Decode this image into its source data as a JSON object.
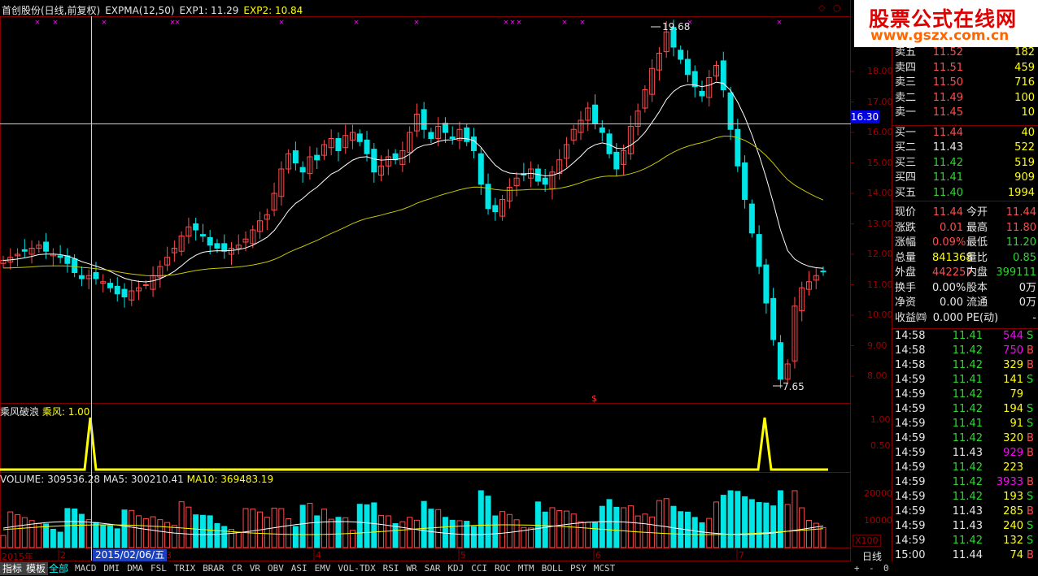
{
  "header": {
    "stock_name": "首创股份(日线,前复权)",
    "indicator": "EXPMA(12,50)",
    "exp1_label": "EXP1: 11.29",
    "exp2_label": "EXP2: 10.84"
  },
  "sub_header": {
    "name": "乘风破浪",
    "value_label": "乘风: 1.00"
  },
  "volume_header": {
    "volume": "VOLUME: 309536.28",
    "ma5": "MA5: 300210.41",
    "ma10": "MA10: 369483.19"
  },
  "logo": {
    "title": "股票公式在线网",
    "url": "www.gszx.com.cn"
  },
  "price_axis": [
    "18.00",
    "17.00",
    "16.00",
    "15.00",
    "14.00",
    "13.00",
    "12.00",
    "11.00",
    "10.00",
    "9.00",
    "8.00"
  ],
  "sub_axis": [
    "1.00",
    "0.50"
  ],
  "vol_axis": [
    "20000",
    "10000"
  ],
  "cursor_price": "16.30",
  "max_label": "19.68",
  "min_label": "7.65",
  "x100": "X100",
  "daily": "日线",
  "date_box": "2015/02/06/五",
  "year_label": "2015年",
  "month_labels": [
    "2",
    "3",
    "4",
    "5",
    "6",
    "7"
  ],
  "dollar_mark": "$",
  "order_book": {
    "sell": [
      {
        "label": "卖五",
        "price": "11.52",
        "vol": "182"
      },
      {
        "label": "卖四",
        "price": "11.51",
        "vol": "459"
      },
      {
        "label": "卖三",
        "price": "11.50",
        "vol": "716"
      },
      {
        "label": "卖二",
        "price": "11.49",
        "vol": "100"
      },
      {
        "label": "卖一",
        "price": "11.45",
        "vol": "10"
      }
    ],
    "buy": [
      {
        "label": "买一",
        "price": "11.44",
        "vol": "40"
      },
      {
        "label": "买二",
        "price": "11.43",
        "vol": "522"
      },
      {
        "label": "买三",
        "price": "11.42",
        "vol": "519"
      },
      {
        "label": "买四",
        "price": "11.41",
        "vol": "909"
      },
      {
        "label": "买五",
        "price": "11.40",
        "vol": "1994"
      }
    ]
  },
  "quote": [
    {
      "l1": "现价",
      "v1": "11.44",
      "l2": "今开",
      "v2": "11.44"
    },
    {
      "l1": "涨跌",
      "v1": "0.01",
      "l2": "最高",
      "v2": "11.80"
    },
    {
      "l1": "涨幅",
      "v1": "0.09%",
      "l2": "最低",
      "v2": "11.20"
    },
    {
      "l1": "总量",
      "v1": "841368",
      "l2": "量比",
      "v2": "0.85"
    },
    {
      "l1": "外盘",
      "v1": "442257",
      "l2": "内盘",
      "v2": "399111"
    },
    {
      "l1": "换手",
      "v1": "0.00%",
      "l2": "股本",
      "v2": "0万"
    },
    {
      "l1": "净资",
      "v1": "0.00",
      "l2": "流通",
      "v2": "0万"
    },
    {
      "l1": "收益㈣",
      "v1": "0.000",
      "l2": "PE(动)",
      "v2": "-"
    }
  ],
  "ticks": [
    {
      "t": "14:58",
      "p": "11.41",
      "v": "544",
      "f": "S"
    },
    {
      "t": "14:58",
      "p": "11.42",
      "v": "750",
      "f": "B"
    },
    {
      "t": "14:58",
      "p": "11.42",
      "v": "329",
      "f": "B"
    },
    {
      "t": "14:59",
      "p": "11.41",
      "v": "141",
      "f": "S"
    },
    {
      "t": "14:59",
      "p": "11.42",
      "v": "79",
      "f": ""
    },
    {
      "t": "14:59",
      "p": "11.42",
      "v": "194",
      "f": "S"
    },
    {
      "t": "14:59",
      "p": "11.41",
      "v": "91",
      "f": "S"
    },
    {
      "t": "14:59",
      "p": "11.42",
      "v": "320",
      "f": "B"
    },
    {
      "t": "14:59",
      "p": "11.43",
      "v": "929",
      "f": "B"
    },
    {
      "t": "14:59",
      "p": "11.42",
      "v": "223",
      "f": ""
    },
    {
      "t": "14:59",
      "p": "11.42",
      "v": "3933",
      "f": "B"
    },
    {
      "t": "14:59",
      "p": "11.42",
      "v": "193",
      "f": "S"
    },
    {
      "t": "14:59",
      "p": "11.43",
      "v": "285",
      "f": "B"
    },
    {
      "t": "14:59",
      "p": "11.43",
      "v": "240",
      "f": "S"
    },
    {
      "t": "14:59",
      "p": "11.42",
      "v": "132",
      "f": "S"
    },
    {
      "t": "15:00",
      "p": "11.44",
      "v": "74",
      "f": "B"
    }
  ],
  "tabs": {
    "buttons": [
      "指标",
      "模板"
    ],
    "selected": "全部",
    "items": [
      "MACD",
      "DMI",
      "DMA",
      "FSL",
      "TRIX",
      "BRAR",
      "CR",
      "VR",
      "OBV",
      "ASI",
      "EMV",
      "VOL-TDX",
      "RSI",
      "WR",
      "SAR",
      "KDJ",
      "CCI",
      "ROC",
      "MTM",
      "BOLL",
      "PSY",
      "MCST"
    ],
    "right": [
      "+",
      "-",
      "0"
    ]
  },
  "colors": {
    "up": "#ff4b4b",
    "down": "#00e5e5",
    "exp1": "#ffffff",
    "exp2": "#c8c800",
    "signal": "#ffff00",
    "marker": "#ff00ff"
  }
}
